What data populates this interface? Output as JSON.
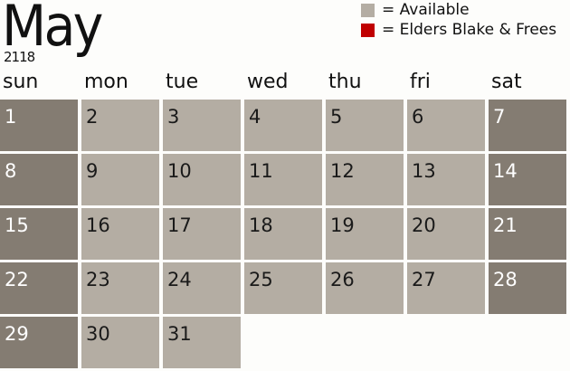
{
  "header": {
    "month": "May",
    "year": "2118"
  },
  "legend": [
    {
      "label": "= Available",
      "color": "#b4ada3"
    },
    {
      "label": "= Elders Blake & Frees",
      "color": "#c00000"
    }
  ],
  "weekdays": [
    "sun",
    "mon",
    "tue",
    "wed",
    "thu",
    "fri",
    "sat"
  ],
  "first_weekday": 0,
  "days_in_month": 31,
  "colors": {
    "weekday": "#b4ada3",
    "weekend": "#847c72"
  }
}
